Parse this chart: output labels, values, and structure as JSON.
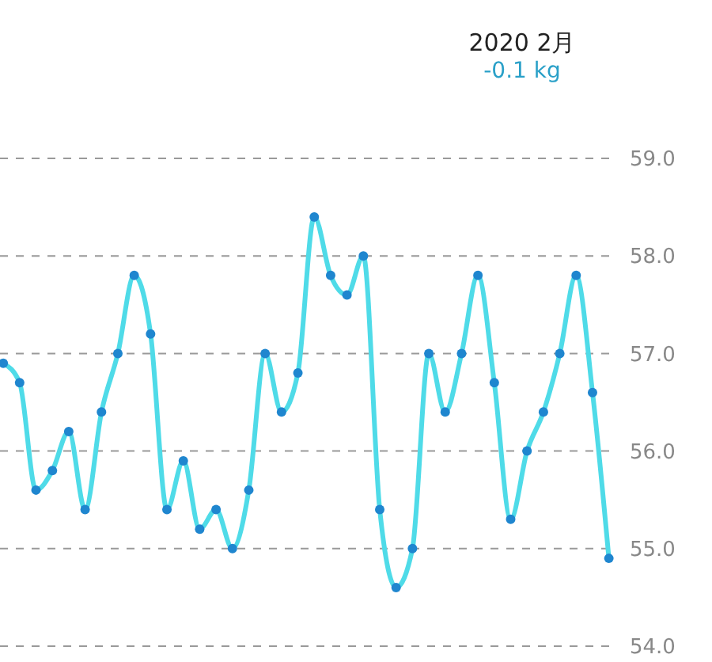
{
  "chart_data": {
    "type": "line",
    "title": "2020 2月",
    "subtitle": "-0.1 kg",
    "categories": [
      null,
      null,
      null,
      null,
      null,
      null,
      null,
      null,
      null,
      null,
      null,
      null,
      null,
      null,
      null,
      null,
      null,
      null,
      null,
      null,
      null,
      null,
      null,
      null,
      null,
      null,
      null,
      null,
      null,
      null,
      null,
      null,
      null,
      null,
      null,
      null,
      null,
      null
    ],
    "series": [
      {
        "color": "#4fdbe8",
        "values": [
          56.9,
          56.7,
          55.6,
          55.8,
          56.2,
          55.4,
          56.4,
          57.0,
          57.8,
          57.2,
          55.4,
          55.9,
          55.2,
          55.4,
          55.0,
          55.6,
          57.0,
          56.4,
          56.8,
          58.4,
          57.8,
          57.6,
          58.0,
          55.4,
          54.6,
          55.0,
          57.0,
          56.4,
          57.0,
          57.8,
          56.7,
          55.3,
          56.0,
          56.4,
          57.0,
          57.8,
          56.6,
          54.9
        ]
      }
    ],
    "ylim": [
      54,
      59
    ],
    "yticks": [
      {
        "value": 54,
        "label": "54.0"
      },
      {
        "value": 55,
        "label": "55.0"
      },
      {
        "value": 56,
        "label": "56.0"
      },
      {
        "value": 57,
        "label": "57.0"
      },
      {
        "value": 58,
        "label": "58.0"
      },
      {
        "value": 59,
        "label": "59.0"
      }
    ],
    "tick_labels": "y",
    "grid": "y",
    "marker": "circle",
    "line_style": "solid"
  }
}
